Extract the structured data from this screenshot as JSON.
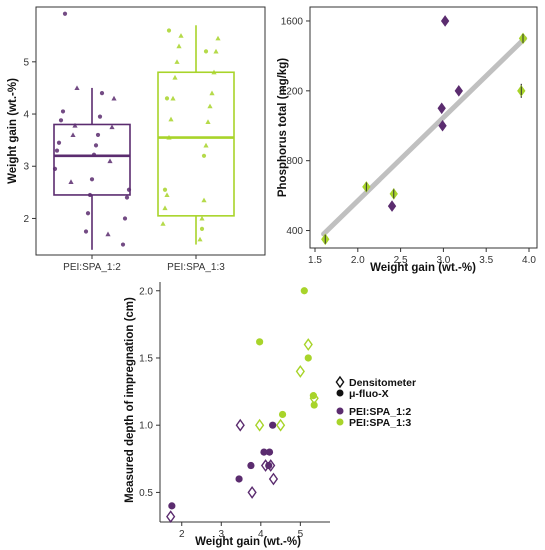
{
  "colors": {
    "purple": "#5b2c6f",
    "green": "#a8d42a",
    "panel_border": "#333333",
    "fit_line": "#c0c0c0"
  },
  "chart_data": [
    {
      "type": "box",
      "id": "boxplot",
      "categories": [
        "PEI:SPA_1:2",
        "PEI:SPA_1:3"
      ],
      "ylabel": "Weight gain (wt.-%)",
      "xlabel": "",
      "ylim": [
        1.3,
        6.05
      ],
      "yticks": [
        2,
        3,
        4,
        5
      ],
      "boxes": [
        {
          "category": "PEI:SPA_1:2",
          "min": 1.4,
          "q1": 2.45,
          "median": 3.2,
          "q3": 3.8,
          "max": 4.5
        },
        {
          "category": "PEI:SPA_1:3",
          "min": 1.5,
          "q1": 2.05,
          "median": 3.55,
          "q3": 4.8,
          "max": 5.7
        }
      ],
      "points": [
        {
          "category": "PEI:SPA_1:2",
          "shape": "circle",
          "y": [
            5.92,
            4.4,
            4.05,
            3.95,
            3.88,
            3.6,
            3.45,
            3.4,
            3.3,
            3.22,
            2.95,
            2.75,
            2.55,
            2.45,
            2.4,
            2.1,
            2.0,
            1.75,
            1.5
          ]
        },
        {
          "category": "PEI:SPA_1:2",
          "shape": "triangle",
          "y": [
            4.5,
            4.3,
            3.78,
            3.75,
            3.6,
            3.1,
            2.7,
            1.7
          ]
        },
        {
          "category": "PEI:SPA_1:3",
          "shape": "circle",
          "y": [
            5.6,
            5.2,
            4.3,
            3.2,
            2.55,
            1.8
          ]
        },
        {
          "category": "PEI:SPA_1:3",
          "shape": "triangle",
          "y": [
            5.5,
            5.45,
            5.3,
            5.2,
            5.0,
            4.8,
            4.7,
            4.4,
            4.3,
            4.15,
            3.9,
            3.85,
            3.55,
            3.4,
            2.45,
            2.35,
            2.2,
            2.0,
            1.9,
            1.6
          ]
        }
      ]
    },
    {
      "type": "scatter",
      "id": "phosphorus",
      "xlabel": "Weight gain (wt.-%)",
      "ylabel": "Phosphorus total (mg/kg)",
      "xlim": [
        1.5,
        4.0
      ],
      "ylim": [
        300,
        1680
      ],
      "xticks": [
        "1.5",
        "2.0",
        "2.5",
        "3.0",
        "3.5",
        "4.0"
      ],
      "yticks": [
        400,
        800,
        1200,
        1600
      ],
      "fit_line": {
        "from": [
          1.6,
          380
        ],
        "to": [
          3.95,
          1500
        ]
      },
      "points": [
        {
          "x": 1.62,
          "y": 350,
          "err": 25,
          "group": "PEI:SPA_1:3"
        },
        {
          "x": 2.1,
          "y": 650,
          "err": 20,
          "group": "PEI:SPA_1:3"
        },
        {
          "x": 2.42,
          "y": 610,
          "err": 30,
          "group": "PEI:SPA_1:3"
        },
        {
          "x": 2.4,
          "y": 540,
          "err": 0,
          "group": "PEI:SPA_1:2"
        },
        {
          "x": 2.98,
          "y": 1100,
          "err": 0,
          "group": "PEI:SPA_1:2"
        },
        {
          "x": 2.99,
          "y": 1000,
          "err": 0,
          "group": "PEI:SPA_1:2"
        },
        {
          "x": 3.02,
          "y": 1600,
          "err": 0,
          "group": "PEI:SPA_1:2"
        },
        {
          "x": 3.18,
          "y": 1200,
          "err": 0,
          "group": "PEI:SPA_1:2"
        },
        {
          "x": 3.91,
          "y": 1200,
          "err": 40,
          "group": "PEI:SPA_1:3"
        },
        {
          "x": 3.93,
          "y": 1500,
          "err": 25,
          "group": "PEI:SPA_1:3"
        }
      ]
    },
    {
      "type": "scatter",
      "id": "impregnation",
      "xlabel": "Weight gain (wt.-%)",
      "ylabel": "Measured depth of impregnation (cm)",
      "xlim": [
        1.45,
        5.75
      ],
      "ylim": [
        0.28,
        2.08
      ],
      "xticks": [
        2,
        3,
        4,
        5
      ],
      "yticks": [
        "0.5",
        "1.0",
        "1.5",
        "2.0"
      ],
      "legend": {
        "position": "right",
        "method_entries": [
          {
            "label": "Densitometer",
            "shape": "diamond-open"
          },
          {
            "label": "μ-fluo-X",
            "shape": "circle-filled"
          }
        ],
        "group_entries": [
          {
            "label": "PEI:SPA_1:2",
            "color": "#5b2c6f"
          },
          {
            "label": "PEI:SPA_1:3",
            "color": "#a8d42a"
          }
        ]
      },
      "points": [
        {
          "x": 1.75,
          "y": 0.4,
          "method": "μ-fluo-X",
          "group": "PEI:SPA_1:2"
        },
        {
          "x": 1.72,
          "y": 0.32,
          "method": "Densitometer",
          "group": "PEI:SPA_1:2"
        },
        {
          "x": 3.45,
          "y": 0.6,
          "method": "μ-fluo-X",
          "group": "PEI:SPA_1:2"
        },
        {
          "x": 3.48,
          "y": 1.0,
          "method": "Densitometer",
          "group": "PEI:SPA_1:2"
        },
        {
          "x": 3.75,
          "y": 0.7,
          "method": "μ-fluo-X",
          "group": "PEI:SPA_1:2"
        },
        {
          "x": 3.78,
          "y": 0.5,
          "method": "Densitometer",
          "group": "PEI:SPA_1:2"
        },
        {
          "x": 4.08,
          "y": 0.8,
          "method": "μ-fluo-X",
          "group": "PEI:SPA_1:2"
        },
        {
          "x": 4.22,
          "y": 0.8,
          "method": "μ-fluo-X",
          "group": "PEI:SPA_1:2"
        },
        {
          "x": 4.2,
          "y": 0.7,
          "method": "μ-fluo-X",
          "group": "PEI:SPA_1:2"
        },
        {
          "x": 4.12,
          "y": 0.7,
          "method": "Densitometer",
          "group": "PEI:SPA_1:2"
        },
        {
          "x": 4.25,
          "y": 0.7,
          "method": "Densitometer",
          "group": "PEI:SPA_1:2"
        },
        {
          "x": 4.32,
          "y": 0.6,
          "method": "Densitometer",
          "group": "PEI:SPA_1:2"
        },
        {
          "x": 4.3,
          "y": 1.0,
          "method": "μ-fluo-X",
          "group": "PEI:SPA_1:2"
        },
        {
          "x": 3.97,
          "y": 1.62,
          "method": "μ-fluo-X",
          "group": "PEI:SPA_1:3"
        },
        {
          "x": 3.97,
          "y": 1.0,
          "method": "Densitometer",
          "group": "PEI:SPA_1:3"
        },
        {
          "x": 4.5,
          "y": 1.0,
          "method": "Densitometer",
          "group": "PEI:SPA_1:3"
        },
        {
          "x": 4.55,
          "y": 1.08,
          "method": "μ-fluo-X",
          "group": "PEI:SPA_1:3"
        },
        {
          "x": 5.0,
          "y": 1.4,
          "method": "Densitometer",
          "group": "PEI:SPA_1:3"
        },
        {
          "x": 5.1,
          "y": 2.0,
          "method": "μ-fluo-X",
          "group": "PEI:SPA_1:3"
        },
        {
          "x": 5.2,
          "y": 1.6,
          "method": "Densitometer",
          "group": "PEI:SPA_1:3"
        },
        {
          "x": 5.2,
          "y": 1.5,
          "method": "μ-fluo-X",
          "group": "PEI:SPA_1:3"
        },
        {
          "x": 5.35,
          "y": 1.2,
          "method": "Densitometer",
          "group": "PEI:SPA_1:3"
        },
        {
          "x": 5.35,
          "y": 1.15,
          "method": "μ-fluo-X",
          "group": "PEI:SPA_1:3"
        },
        {
          "x": 5.33,
          "y": 1.22,
          "method": "μ-fluo-X",
          "group": "PEI:SPA_1:3"
        }
      ]
    }
  ]
}
